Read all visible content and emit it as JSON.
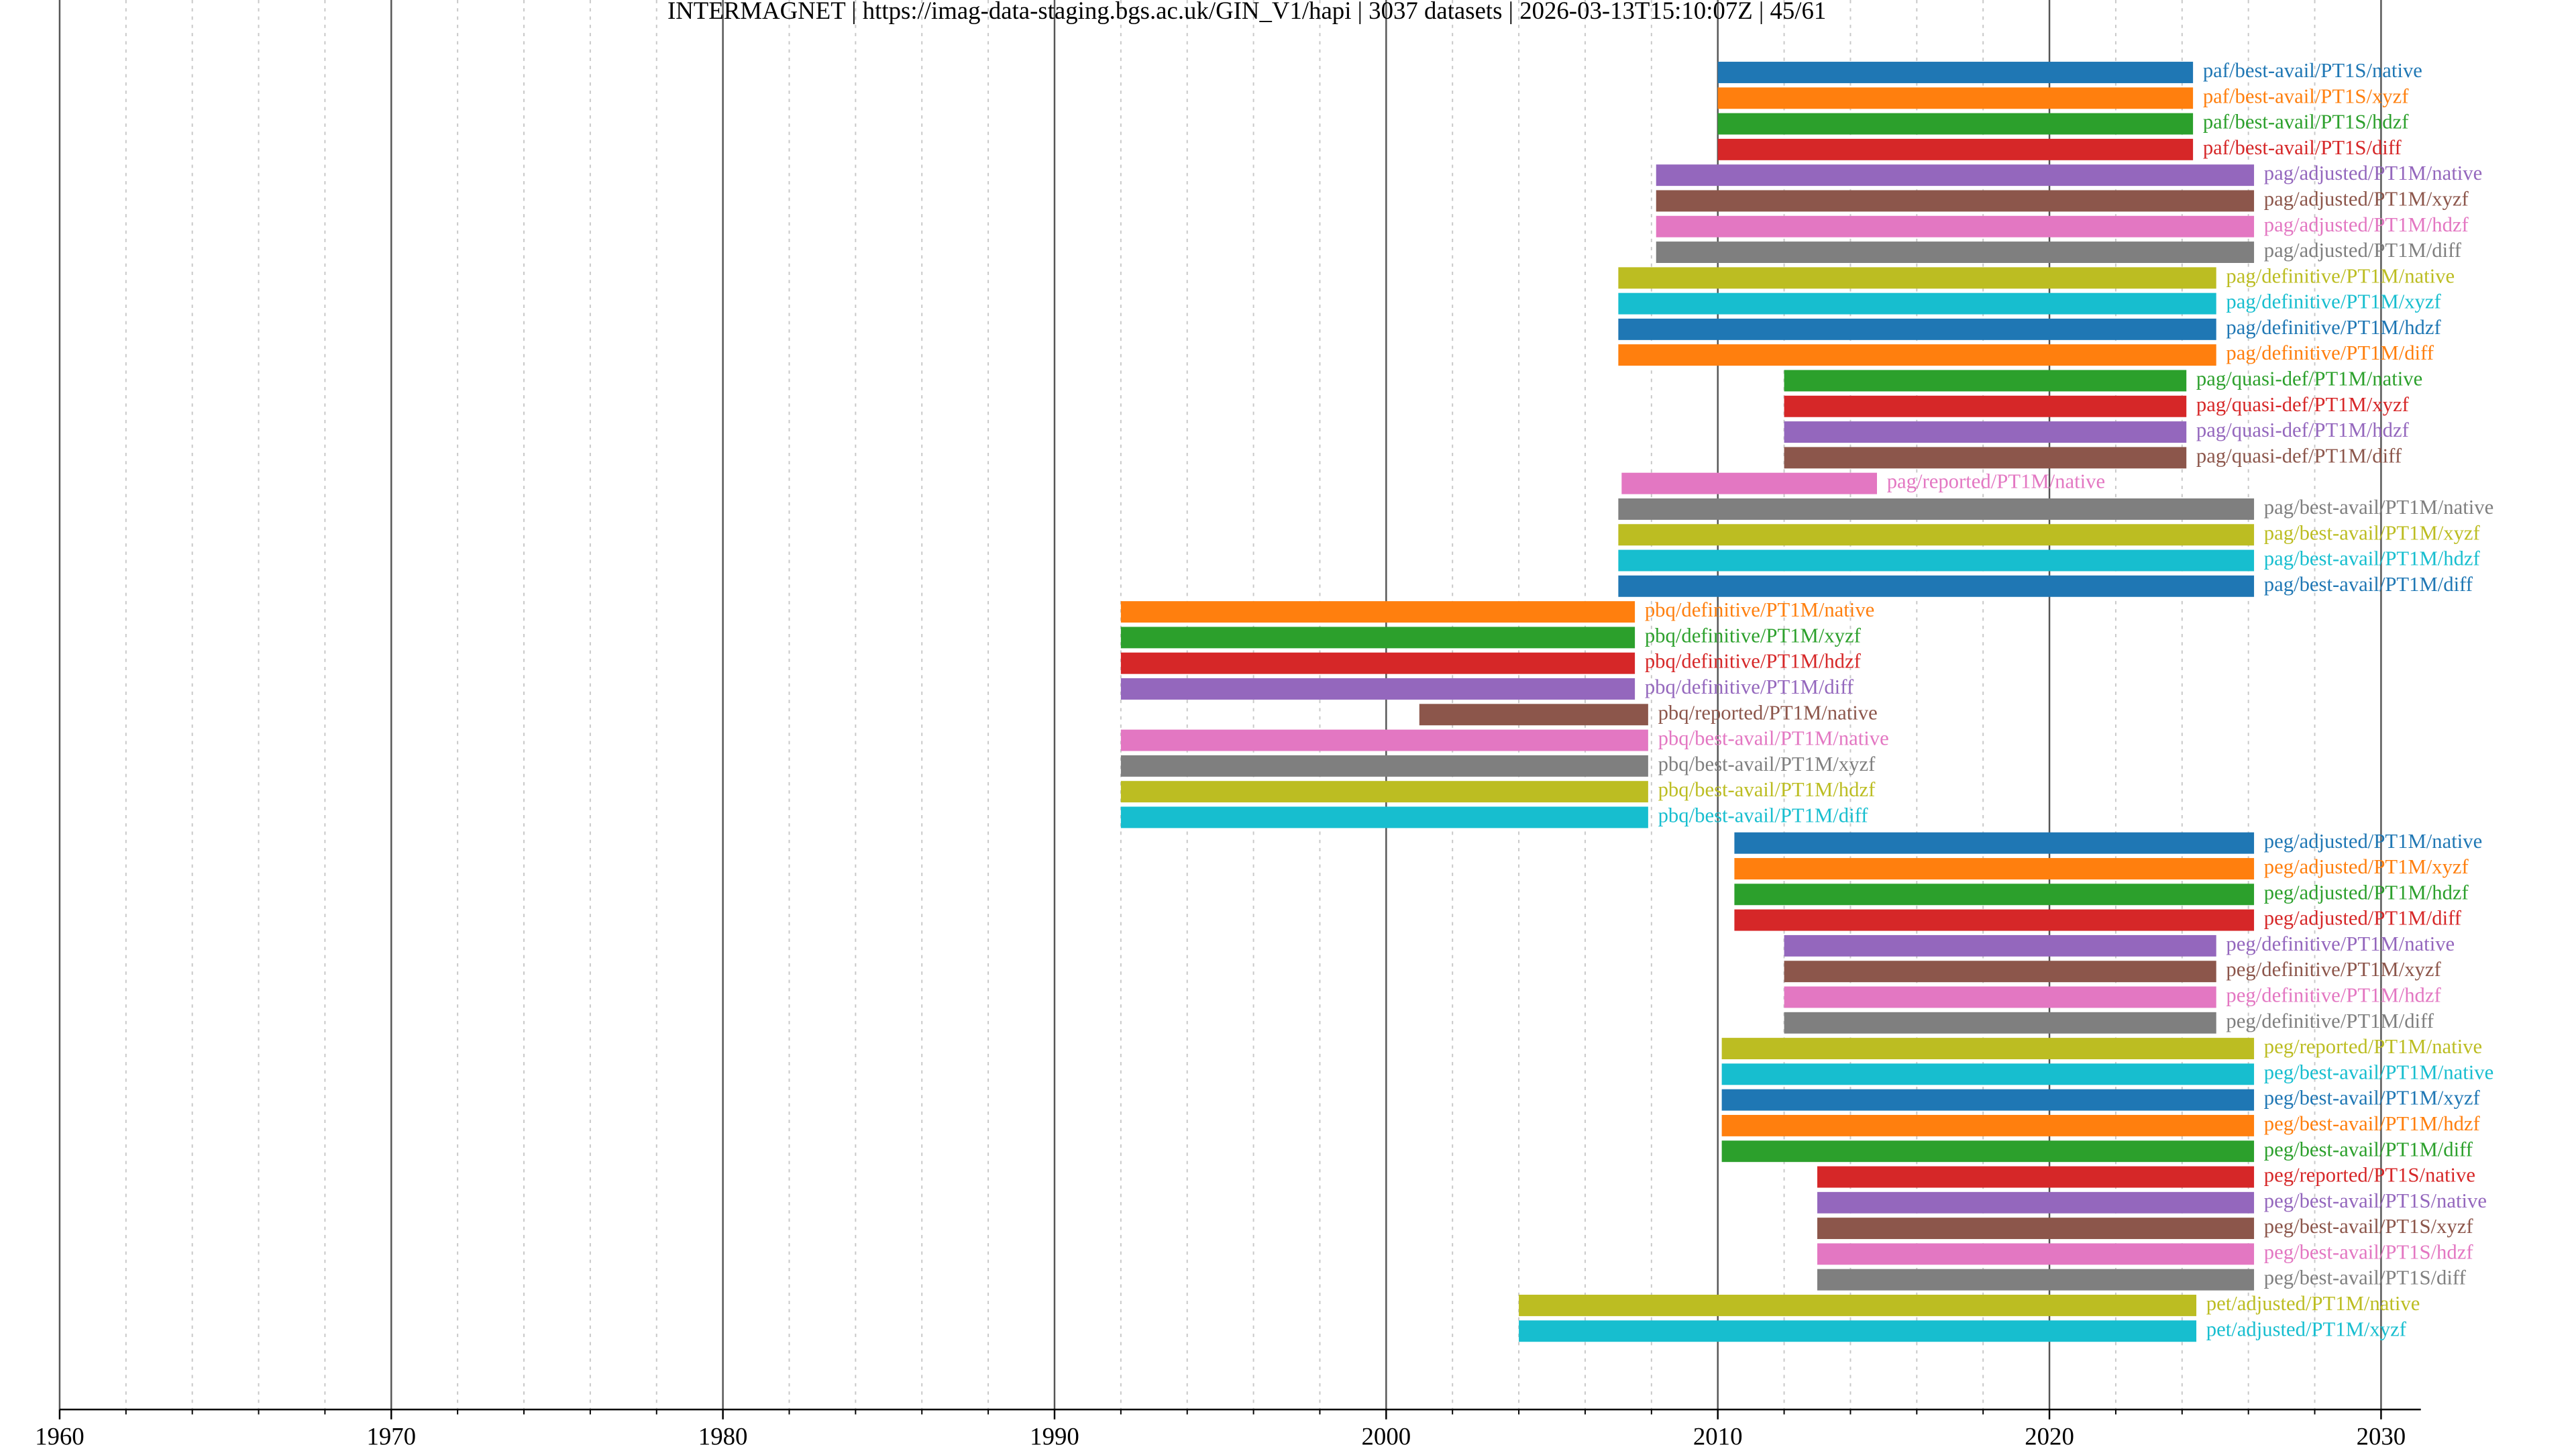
{
  "chart_data": {
    "type": "gantt",
    "title": "INTERMAGNET | https://imag-data-staging.bgs.ac.uk/GIN_V1/hapi | 3037 datasets | 2026-03-13T15:10:07Z | 45/61",
    "palette": [
      "#1f77b4",
      "#ff7f0e",
      "#2ca02c",
      "#d62728",
      "#9467bd",
      "#8c564b",
      "#e377c2",
      "#7f7f7f",
      "#bcbd22",
      "#17becf"
    ],
    "xlim": [
      1960,
      2031.2
    ],
    "xticks": [
      1960,
      1970,
      1980,
      1990,
      2000,
      2010,
      2020,
      2030
    ],
    "xminorticks": [
      1962,
      1964,
      1966,
      1968,
      1972,
      1974,
      1976,
      1978,
      1982,
      1984,
      1986,
      1988,
      1992,
      1994,
      1996,
      1998,
      2002,
      2004,
      2006,
      2008,
      2012,
      2014,
      2016,
      2018,
      2022,
      2024,
      2026,
      2028
    ],
    "grid": true,
    "tasks": [
      {
        "name": "paf/best-avail/PT1S/native",
        "start": 2010.0,
        "end": 2024.33
      },
      {
        "name": "paf/best-avail/PT1S/xyzf",
        "start": 2010.0,
        "end": 2024.33
      },
      {
        "name": "paf/best-avail/PT1S/hdzf",
        "start": 2010.0,
        "end": 2024.33
      },
      {
        "name": "paf/best-avail/PT1S/diff",
        "start": 2010.0,
        "end": 2024.33
      },
      {
        "name": "pag/adjusted/PT1M/native",
        "start": 2008.14,
        "end": 2026.17
      },
      {
        "name": "pag/adjusted/PT1M/xyzf",
        "start": 2008.14,
        "end": 2026.17
      },
      {
        "name": "pag/adjusted/PT1M/hdzf",
        "start": 2008.14,
        "end": 2026.17
      },
      {
        "name": "pag/adjusted/PT1M/diff",
        "start": 2008.14,
        "end": 2026.17
      },
      {
        "name": "pag/definitive/PT1M/native",
        "start": 2007.0,
        "end": 2025.03
      },
      {
        "name": "pag/definitive/PT1M/xyzf",
        "start": 2007.0,
        "end": 2025.03
      },
      {
        "name": "pag/definitive/PT1M/hdzf",
        "start": 2007.0,
        "end": 2025.03
      },
      {
        "name": "pag/definitive/PT1M/diff",
        "start": 2007.0,
        "end": 2025.03
      },
      {
        "name": "pag/quasi-def/PT1M/native",
        "start": 2012.0,
        "end": 2024.13
      },
      {
        "name": "pag/quasi-def/PT1M/xyzf",
        "start": 2012.0,
        "end": 2024.13
      },
      {
        "name": "pag/quasi-def/PT1M/hdzf",
        "start": 2012.0,
        "end": 2024.13
      },
      {
        "name": "pag/quasi-def/PT1M/diff",
        "start": 2012.0,
        "end": 2024.13
      },
      {
        "name": "pag/reported/PT1M/native",
        "start": 2007.1,
        "end": 2014.8
      },
      {
        "name": "pag/best-avail/PT1M/native",
        "start": 2007.0,
        "end": 2026.17
      },
      {
        "name": "pag/best-avail/PT1M/xyzf",
        "start": 2007.0,
        "end": 2026.17
      },
      {
        "name": "pag/best-avail/PT1M/hdzf",
        "start": 2007.0,
        "end": 2026.17
      },
      {
        "name": "pag/best-avail/PT1M/diff",
        "start": 2007.0,
        "end": 2026.17
      },
      {
        "name": "pbq/definitive/PT1M/native",
        "start": 1992.0,
        "end": 2007.5
      },
      {
        "name": "pbq/definitive/PT1M/xyzf",
        "start": 1992.0,
        "end": 2007.5
      },
      {
        "name": "pbq/definitive/PT1M/hdzf",
        "start": 1992.0,
        "end": 2007.5
      },
      {
        "name": "pbq/definitive/PT1M/diff",
        "start": 1992.0,
        "end": 2007.5
      },
      {
        "name": "pbq/reported/PT1M/native",
        "start": 2001.0,
        "end": 2007.9
      },
      {
        "name": "pbq/best-avail/PT1M/native",
        "start": 1992.0,
        "end": 2007.9
      },
      {
        "name": "pbq/best-avail/PT1M/xyzf",
        "start": 1992.0,
        "end": 2007.9
      },
      {
        "name": "pbq/best-avail/PT1M/hdzf",
        "start": 1992.0,
        "end": 2007.9
      },
      {
        "name": "pbq/best-avail/PT1M/diff",
        "start": 1992.0,
        "end": 2007.9
      },
      {
        "name": "peg/adjusted/PT1M/native",
        "start": 2010.5,
        "end": 2026.17
      },
      {
        "name": "peg/adjusted/PT1M/xyzf",
        "start": 2010.5,
        "end": 2026.17
      },
      {
        "name": "peg/adjusted/PT1M/hdzf",
        "start": 2010.5,
        "end": 2026.17
      },
      {
        "name": "peg/adjusted/PT1M/diff",
        "start": 2010.5,
        "end": 2026.17
      },
      {
        "name": "peg/definitive/PT1M/native",
        "start": 2012.0,
        "end": 2025.03
      },
      {
        "name": "peg/definitive/PT1M/xyzf",
        "start": 2012.0,
        "end": 2025.03
      },
      {
        "name": "peg/definitive/PT1M/hdzf",
        "start": 2012.0,
        "end": 2025.03
      },
      {
        "name": "peg/definitive/PT1M/diff",
        "start": 2012.0,
        "end": 2025.03
      },
      {
        "name": "peg/reported/PT1M/native",
        "start": 2010.12,
        "end": 2026.17
      },
      {
        "name": "peg/best-avail/PT1M/native",
        "start": 2010.12,
        "end": 2026.17
      },
      {
        "name": "peg/best-avail/PT1M/xyzf",
        "start": 2010.12,
        "end": 2026.17
      },
      {
        "name": "peg/best-avail/PT1M/hdzf",
        "start": 2010.12,
        "end": 2026.17
      },
      {
        "name": "peg/best-avail/PT1M/diff",
        "start": 2010.12,
        "end": 2026.17
      },
      {
        "name": "peg/reported/PT1S/native",
        "start": 2013.0,
        "end": 2026.17
      },
      {
        "name": "peg/best-avail/PT1S/native",
        "start": 2013.0,
        "end": 2026.17
      },
      {
        "name": "peg/best-avail/PT1S/xyzf",
        "start": 2013.0,
        "end": 2026.17
      },
      {
        "name": "peg/best-avail/PT1S/hdzf",
        "start": 2013.0,
        "end": 2026.17
      },
      {
        "name": "peg/best-avail/PT1S/diff",
        "start": 2013.0,
        "end": 2026.17
      },
      {
        "name": "pet/adjusted/PT1M/native",
        "start": 2004.0,
        "end": 2024.43
      },
      {
        "name": "pet/adjusted/PT1M/xyzf",
        "start": 2004.0,
        "end": 2024.43
      }
    ]
  }
}
